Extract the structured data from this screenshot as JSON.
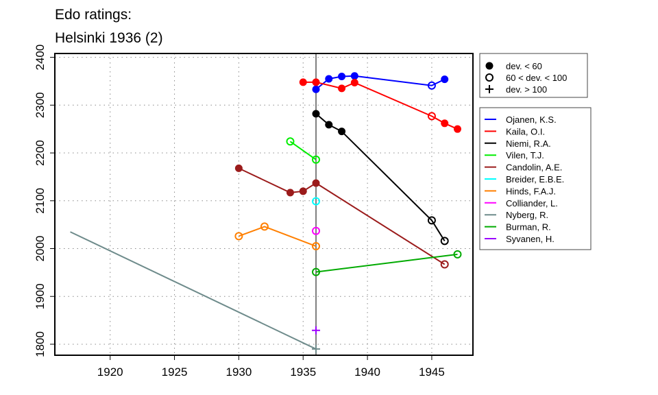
{
  "chart_data": {
    "type": "line",
    "title_lines": [
      "Edo ratings:",
      "Helsinki 1936 (2)"
    ],
    "xlabel": "",
    "ylabel": "",
    "xlim": [
      1915.7,
      1948.2
    ],
    "ylim": [
      1777,
      2408
    ],
    "xticks": [
      1920,
      1925,
      1930,
      1935,
      1940,
      1945
    ],
    "yticks": [
      1800,
      1900,
      2000,
      2100,
      2200,
      2300,
      2400
    ],
    "grid": true,
    "reference_year": 1936,
    "marker_legend": {
      "placement": "top-right-outside",
      "entries": [
        {
          "marker": "filled",
          "label": "dev. < 60"
        },
        {
          "marker": "open",
          "label": "60 < dev. < 100"
        },
        {
          "marker": "plus",
          "label": "dev. > 100"
        }
      ]
    },
    "series": [
      {
        "name": "Ojanen, K.S.",
        "color": "#0000ff",
        "points": [
          [
            1936,
            2333,
            "filled"
          ],
          [
            1937,
            2355,
            "filled"
          ],
          [
            1938,
            2360,
            "filled"
          ],
          [
            1939,
            2361,
            "filled"
          ],
          [
            1945,
            2341,
            "open"
          ],
          [
            1946,
            2354,
            "filled"
          ]
        ]
      },
      {
        "name": "Kaila, O.I.",
        "color": "#ff0000",
        "points": [
          [
            1935,
            2348,
            "filled"
          ],
          [
            1936,
            2348,
            "filled"
          ],
          [
            1938,
            2335,
            "filled"
          ],
          [
            1939,
            2347,
            "filled"
          ],
          [
            1945,
            2277,
            "open"
          ],
          [
            1946,
            2262,
            "filled"
          ],
          [
            1947,
            2250,
            "filled"
          ]
        ]
      },
      {
        "name": "Niemi, R.A.",
        "color": "#000000",
        "points": [
          [
            1936,
            2282,
            "filled"
          ],
          [
            1937,
            2259,
            "filled"
          ],
          [
            1938,
            2245,
            "filled"
          ],
          [
            1945,
            2059,
            "open"
          ],
          [
            1946,
            2016,
            "open"
          ]
        ]
      },
      {
        "name": "Vilen, T.J.",
        "color": "#00ee00",
        "points": [
          [
            1934,
            2224,
            "open"
          ],
          [
            1936,
            2186,
            "open"
          ]
        ]
      },
      {
        "name": "Candolin, A.E.",
        "color": "#9b1b1b",
        "points": [
          [
            1930,
            2168,
            "filled"
          ],
          [
            1934,
            2117,
            "filled"
          ],
          [
            1935,
            2120,
            "filled"
          ],
          [
            1936,
            2137,
            "filled"
          ],
          [
            1946,
            1967,
            "open"
          ]
        ]
      },
      {
        "name": "Breider, E.B.E.",
        "color": "#00ffff",
        "points": [
          [
            1936,
            2099,
            "open"
          ]
        ]
      },
      {
        "name": "Hinds, F.A.J.",
        "color": "#ff7f00",
        "points": [
          [
            1930,
            2026,
            "open"
          ],
          [
            1932,
            2046,
            "open"
          ],
          [
            1936,
            2005,
            "open"
          ]
        ]
      },
      {
        "name": "Colliander, L.",
        "color": "#ff00ff",
        "points": [
          [
            1936,
            2037,
            "open"
          ]
        ]
      },
      {
        "name": "Nyberg, R.",
        "color": "#6e8b8b",
        "points": [
          [
            1916.9,
            2035,
            "none"
          ],
          [
            1936,
            1790,
            "plus"
          ]
        ]
      },
      {
        "name": "Burman, R.",
        "color": "#00aa00",
        "points": [
          [
            1936,
            1951,
            "open"
          ],
          [
            1947,
            1988,
            "open"
          ]
        ]
      },
      {
        "name": "Syvanen, H.",
        "color": "#9b00ff",
        "points": [
          [
            1936,
            1829,
            "plus"
          ]
        ]
      }
    ]
  }
}
